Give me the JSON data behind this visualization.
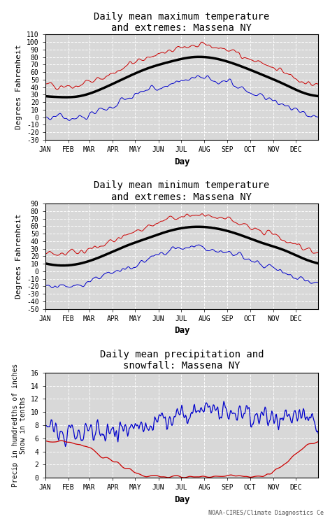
{
  "title1": "Daily mean maximum temperature\nand extremes: Massena NY",
  "title2": "Daily mean minimum temperature\nand extremes: Massena NY",
  "title3": "Daily mean precipitation and\nsnowfall: Massena NY",
  "ylabel1": "Degrees Fahrenheit",
  "ylabel2": "Degrees Fahrenheit",
  "ylabel3": "Precip in hundredths of inches\nSnow in tenths",
  "xlabel": "Day",
  "months": [
    "JAN",
    "FEB",
    "MAR",
    "APR",
    "MAY",
    "JUN",
    "JUL",
    "AUG",
    "SEP",
    "OCT",
    "NOV",
    "DEC"
  ],
  "bg_color": "#d8d8d8",
  "grid_color": "#ffffff",
  "red_color": "#cc0000",
  "blue_color": "#0000cc",
  "black_color": "#000000",
  "watermark": "NOAA-CIRES/Climate Diagnostics Ce",
  "max_temp_mean": [
    27,
    28,
    38,
    52,
    65,
    74,
    80,
    78,
    69,
    57,
    44,
    31
  ],
  "max_temp_ylim": [
    -30,
    110
  ],
  "max_temp_yticks": [
    -30,
    -20,
    -10,
    0,
    10,
    20,
    30,
    40,
    50,
    60,
    70,
    80,
    90,
    100,
    110
  ],
  "min_temp_mean": [
    8,
    10,
    20,
    33,
    44,
    54,
    59,
    57,
    49,
    38,
    28,
    15
  ],
  "min_temp_ylim": [
    -50,
    90
  ],
  "min_temp_yticks": [
    -50,
    -40,
    -30,
    -20,
    -10,
    0,
    10,
    20,
    30,
    40,
    50,
    60,
    70,
    80,
    90
  ],
  "precip_ylim": [
    0,
    16
  ],
  "precip_yticks": [
    0,
    2,
    4,
    6,
    8,
    10,
    12,
    14,
    16
  ]
}
